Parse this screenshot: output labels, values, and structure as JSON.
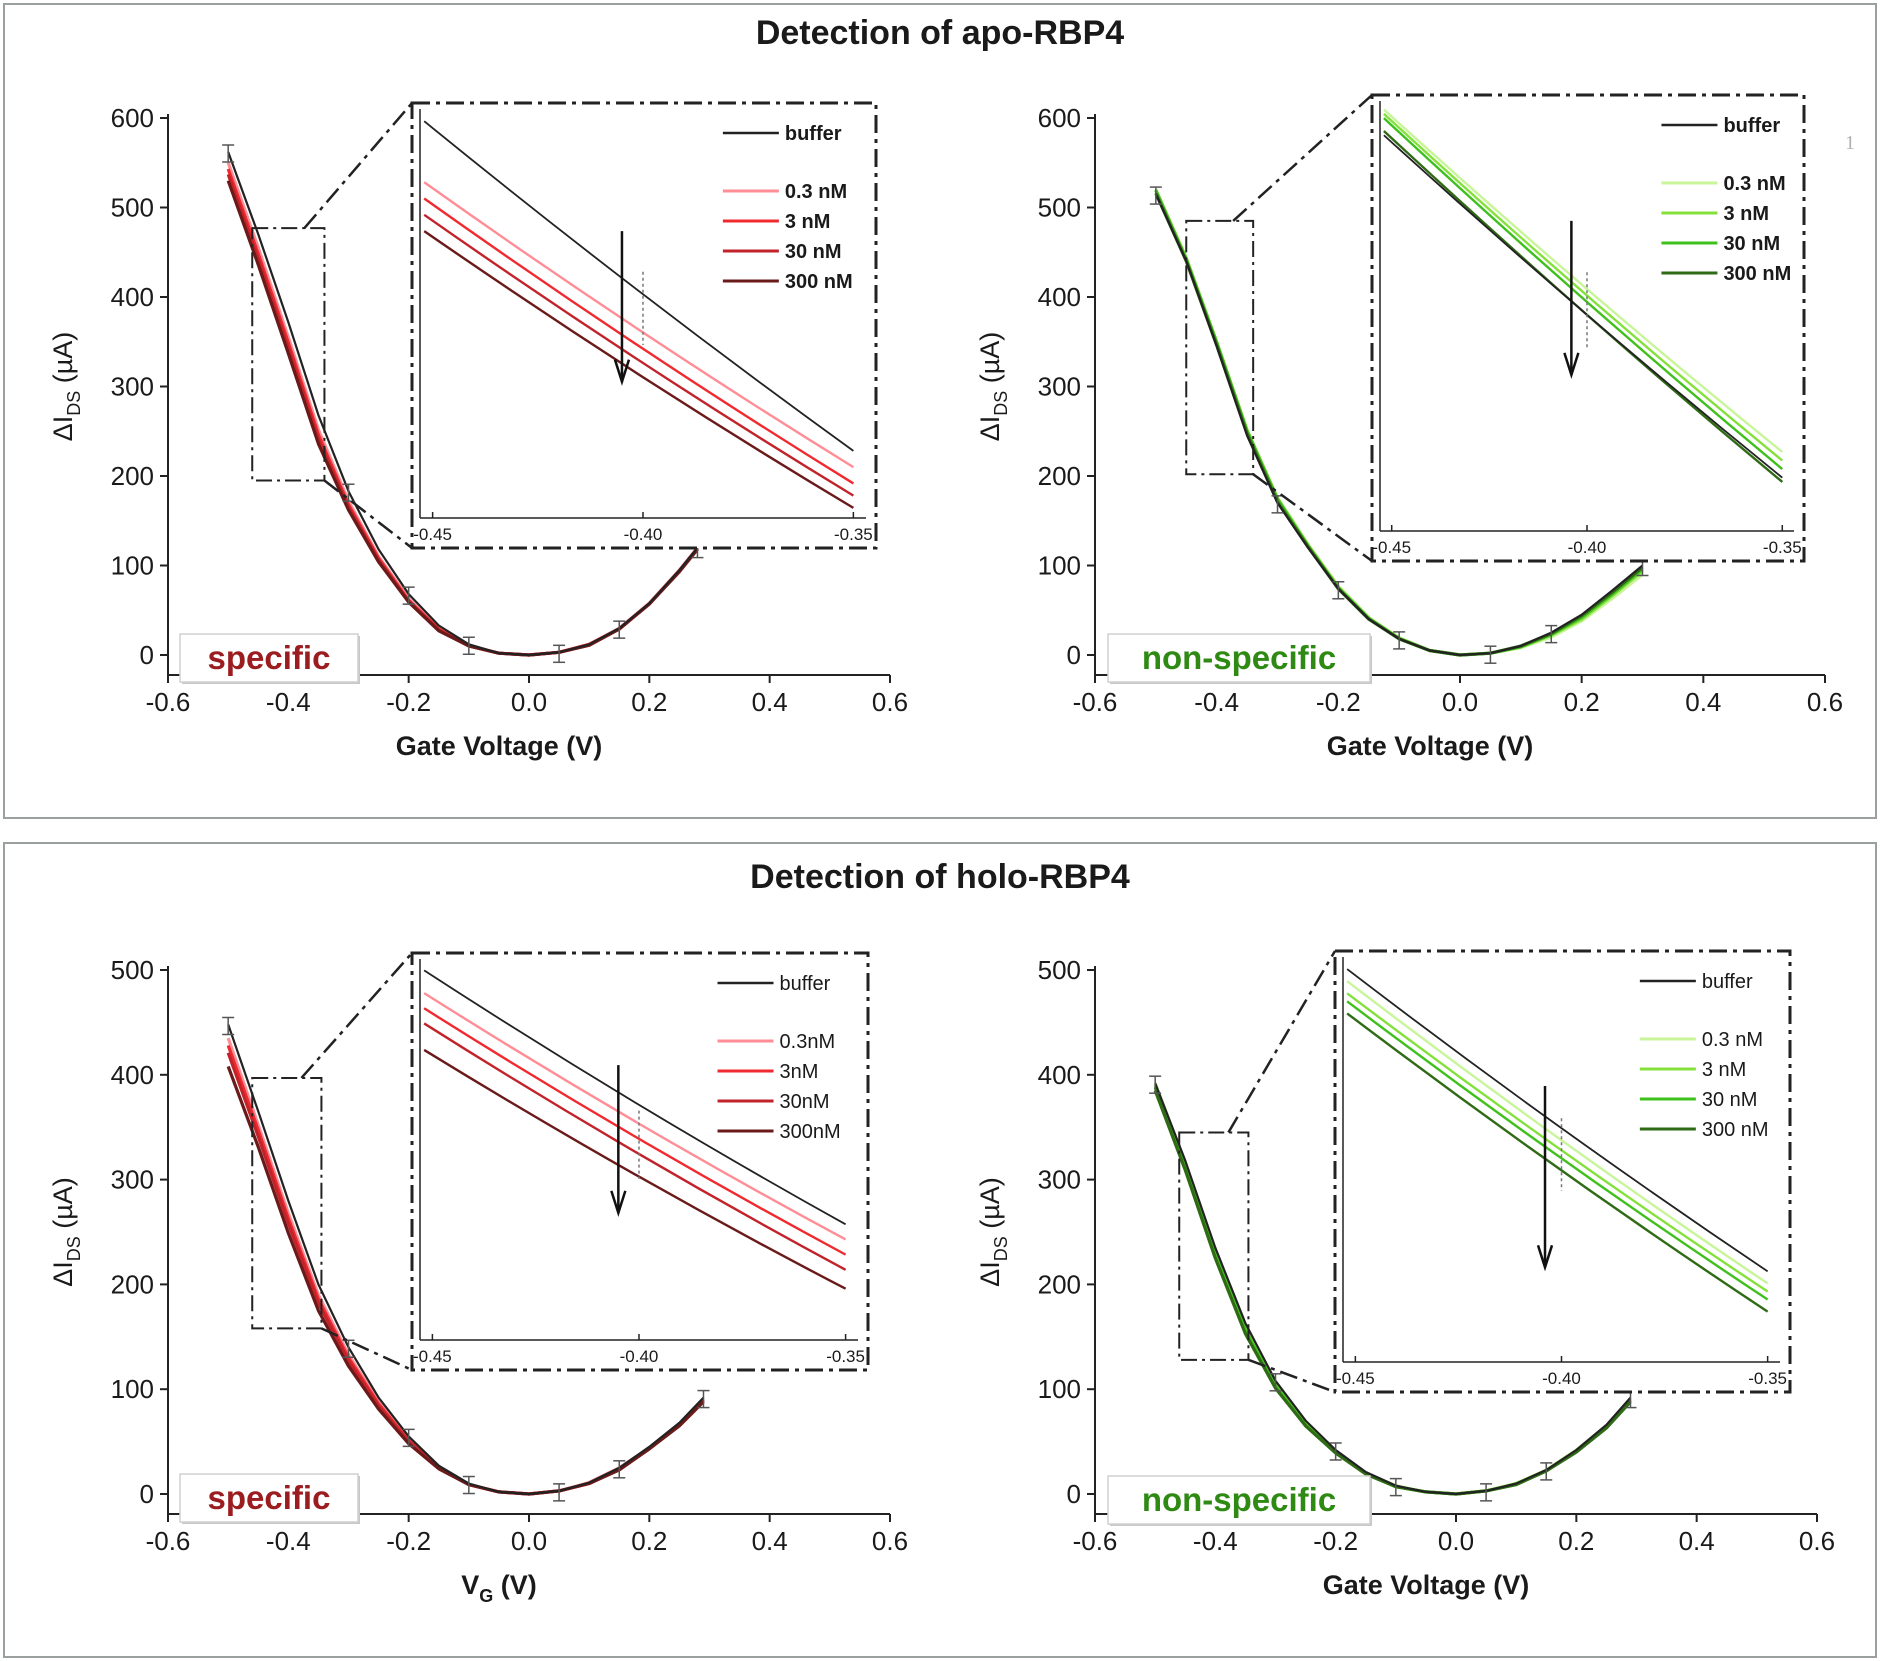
{
  "panels": {
    "top_title": "Detection of apo-RBP4",
    "bottom_title": "Detection of holo-RBP4",
    "stray_mark": "1"
  },
  "colors": {
    "buffer": "#222222",
    "specific": [
      "#ff8d96",
      "#f02a2f",
      "#c2232b",
      "#6b1a1a"
    ],
    "nonspecific": [
      "#c9f59a",
      "#84e13c",
      "#3fc01c",
      "#2f6b15"
    ],
    "specific_label": "#9b1d20",
    "nonspecific_label": "#2f8a14"
  },
  "chart_data": [
    {
      "id": "apo-specific",
      "type": "line",
      "badge": "specific",
      "badge_kind": "specific",
      "xlabel": "Gate Voltage (V)",
      "ylabel_main": "ΔI",
      "ylabel_sub": "DS",
      "ylabel_unit": " (µA)",
      "xlim": [
        -0.6,
        0.6
      ],
      "ylim": [
        0,
        600
      ],
      "xticks": [
        "-0.6",
        "-0.4",
        "-0.2",
        "0.0",
        "0.2",
        "0.4",
        "0.6"
      ],
      "yticks": [
        "0",
        "100",
        "200",
        "300",
        "400",
        "500",
        "600"
      ],
      "x": [
        -0.5,
        -0.45,
        -0.4,
        -0.35,
        -0.3,
        -0.25,
        -0.2,
        -0.15,
        -0.1,
        -0.05,
        0.0,
        0.05,
        0.1,
        0.15,
        0.2,
        0.25,
        0.28
      ],
      "series": [
        {
          "name": "buffer",
          "values": [
            562,
            470,
            372,
            268,
            183,
            118,
            68,
            33,
            12,
            2,
            0,
            3,
            12,
            30,
            58,
            95,
            120
          ]
        },
        {
          "name": "0.3 nM",
          "values": [
            550,
            455,
            355,
            252,
            172,
            110,
            63,
            30,
            11,
            2,
            0,
            3,
            12,
            30,
            58,
            95,
            120
          ]
        },
        {
          "name": "3 nM",
          "values": [
            543,
            448,
            349,
            246,
            168,
            108,
            61,
            29,
            10,
            2,
            0,
            3,
            12,
            29,
            57,
            94,
            119
          ]
        },
        {
          "name": "30 nM",
          "values": [
            537,
            442,
            343,
            241,
            165,
            106,
            60,
            28,
            10,
            2,
            0,
            3,
            11,
            29,
            57,
            94,
            119
          ]
        },
        {
          "name": "300 nM",
          "values": [
            530,
            436,
            337,
            236,
            162,
            104,
            59,
            27,
            10,
            2,
            0,
            3,
            11,
            29,
            57,
            93,
            118
          ]
        }
      ],
      "zoom_box": {
        "x": [
          -0.46,
          -0.34
        ],
        "y": [
          195,
          477
        ]
      },
      "inset": {
        "xlim": [
          -0.453,
          -0.347
        ],
        "xticks": [
          "-0.45",
          "-0.40",
          "-0.35"
        ],
        "xtick_values": [
          -0.45,
          -0.4,
          -0.35
        ],
        "legend": [
          "buffer",
          "0.3 nM",
          "3 nM",
          "30 nM",
          "300 nM"
        ],
        "x": [
          -0.452,
          -0.35
        ],
        "series": [
          [
            0.97,
            0.16
          ],
          [
            0.82,
            0.12
          ],
          [
            0.78,
            0.08
          ],
          [
            0.74,
            0.05
          ],
          [
            0.7,
            0.02
          ]
        ],
        "arrow": {
          "x": -0.405,
          "y0": 0.7,
          "y1": 0.33
        }
      }
    },
    {
      "id": "apo-nonspecific",
      "type": "line",
      "badge": "non-specific",
      "badge_kind": "nonspecific",
      "xlabel": "Gate Voltage (V)",
      "ylabel_main": "ΔI",
      "ylabel_sub": "DS",
      "ylabel_unit": " (µA)",
      "xlim": [
        -0.6,
        0.6
      ],
      "ylim": [
        0,
        600
      ],
      "xticks": [
        "-0.6",
        "-0.4",
        "-0.2",
        "0.0",
        "0.2",
        "0.4",
        "0.6"
      ],
      "yticks": [
        "0",
        "100",
        "200",
        "300",
        "400",
        "500",
        "600"
      ],
      "x": [
        -0.5,
        -0.45,
        -0.4,
        -0.35,
        -0.3,
        -0.25,
        -0.2,
        -0.15,
        -0.1,
        -0.05,
        0.0,
        0.05,
        0.1,
        0.15,
        0.2,
        0.25,
        0.3
      ],
      "series": [
        {
          "name": "buffer",
          "values": [
            515,
            440,
            345,
            245,
            170,
            120,
            74,
            40,
            18,
            5,
            0,
            2,
            10,
            25,
            45,
            72,
            100
          ]
        },
        {
          "name": "0.3 nM",
          "values": [
            520,
            444,
            350,
            252,
            176,
            124,
            77,
            42,
            19,
            5,
            0,
            2,
            8,
            20,
            38,
            63,
            90
          ]
        },
        {
          "name": "3 nM",
          "values": [
            520,
            443,
            350,
            251,
            175,
            123,
            76,
            41,
            19,
            5,
            0,
            2,
            9,
            22,
            40,
            66,
            94
          ]
        },
        {
          "name": "30 nM",
          "values": [
            519,
            442,
            349,
            250,
            174,
            122,
            75,
            41,
            18,
            5,
            0,
            2,
            9,
            23,
            42,
            68,
            96
          ]
        },
        {
          "name": "300 nM",
          "values": [
            516,
            440,
            346,
            247,
            171,
            121,
            74,
            40,
            18,
            5,
            0,
            2,
            10,
            24,
            44,
            70,
            98
          ]
        }
      ],
      "zoom_box": {
        "x": [
          -0.45,
          -0.34
        ],
        "y": [
          202,
          485
        ]
      },
      "inset": {
        "xlim": [
          -0.453,
          -0.347
        ],
        "xticks": [
          "-0.45",
          "-0.40",
          "-0.35"
        ],
        "xtick_values": [
          -0.45,
          -0.4,
          -0.35
        ],
        "legend": [
          "buffer",
          "0.3 nM",
          "3 nM",
          "30 nM",
          "300 nM"
        ],
        "x": [
          -0.452,
          -0.35
        ],
        "series": [
          [
            0.92,
            0.12
          ],
          [
            0.98,
            0.18
          ],
          [
            0.97,
            0.16
          ],
          [
            0.96,
            0.14
          ],
          [
            0.93,
            0.11
          ]
        ],
        "arrow": {
          "x": -0.404,
          "y0": 0.72,
          "y1": 0.36
        }
      }
    },
    {
      "id": "holo-specific",
      "type": "line",
      "badge": "specific",
      "badge_kind": "specific",
      "xlabel_main": "V",
      "xlabel_sub": "G",
      "xlabel_unit": " (V)",
      "ylabel_main": "ΔI",
      "ylabel_sub": "DS",
      "ylabel_unit": " (µA)",
      "xlim": [
        -0.6,
        0.6
      ],
      "ylim": [
        0,
        500
      ],
      "xticks": [
        "-0.6",
        "-0.4",
        "-0.2",
        "0.0",
        "0.2",
        "0.4",
        "0.6"
      ],
      "yticks": [
        "0",
        "100",
        "200",
        "300",
        "400",
        "500"
      ],
      "x": [
        -0.5,
        -0.45,
        -0.4,
        -0.35,
        -0.3,
        -0.25,
        -0.2,
        -0.15,
        -0.1,
        -0.05,
        0.0,
        0.05,
        0.1,
        0.15,
        0.2,
        0.25,
        0.29
      ],
      "series": [
        {
          "name": "buffer",
          "values": [
            448,
            365,
            280,
            200,
            140,
            92,
            55,
            27,
            10,
            2,
            0,
            3,
            11,
            25,
            45,
            68,
            92
          ]
        },
        {
          "name": "0.3nM",
          "values": [
            435,
            352,
            268,
            190,
            133,
            88,
            52,
            26,
            9,
            2,
            0,
            3,
            11,
            25,
            44,
            67,
            91
          ]
        },
        {
          "name": "3nM",
          "values": [
            428,
            347,
            263,
            186,
            130,
            86,
            51,
            25,
            9,
            2,
            0,
            3,
            10,
            24,
            44,
            67,
            90
          ]
        },
        {
          "name": "30nM",
          "values": [
            421,
            341,
            258,
            182,
            127,
            84,
            50,
            25,
            9,
            2,
            0,
            3,
            10,
            24,
            43,
            66,
            89
          ]
        },
        {
          "name": "300nM",
          "values": [
            408,
            331,
            249,
            175,
            122,
            81,
            48,
            24,
            9,
            2,
            0,
            3,
            10,
            23,
            43,
            65,
            88
          ]
        }
      ],
      "zoom_box": {
        "x": [
          -0.46,
          -0.345
        ],
        "y": [
          158,
          397
        ]
      },
      "inset": {
        "xlim": [
          -0.453,
          -0.347
        ],
        "xticks": [
          "-0.45",
          "-0.40",
          "-0.35"
        ],
        "xtick_values": [
          -0.45,
          -0.4,
          -0.35
        ],
        "legend": [
          "buffer",
          "0.3nM",
          "3nM",
          "30nM",
          "300nM"
        ],
        "x": [
          -0.452,
          -0.35
        ],
        "series": [
          [
            0.97,
            0.3
          ],
          [
            0.91,
            0.26
          ],
          [
            0.87,
            0.22
          ],
          [
            0.83,
            0.18
          ],
          [
            0.76,
            0.13
          ]
        ],
        "arrow": {
          "x": -0.405,
          "y0": 0.72,
          "y1": 0.33
        }
      }
    },
    {
      "id": "holo-nonspecific",
      "type": "line",
      "badge": "non-specific",
      "badge_kind": "nonspecific",
      "xlabel": "Gate Voltage (V)",
      "ylabel_main": "ΔI",
      "ylabel_sub": "DS",
      "ylabel_unit": " (µA)",
      "xlim": [
        -0.6,
        0.6
      ],
      "ylim": [
        0,
        500
      ],
      "xticks": [
        "-0.6",
        "-0.4",
        "-0.2",
        "0.0",
        "0.2",
        "0.4",
        "0.6"
      ],
      "yticks": [
        "0",
        "100",
        "200",
        "300",
        "400",
        "500"
      ],
      "x": [
        -0.5,
        -0.45,
        -0.4,
        -0.35,
        -0.3,
        -0.25,
        -0.2,
        -0.15,
        -0.1,
        -0.05,
        0.0,
        0.05,
        0.1,
        0.15,
        0.2,
        0.25,
        0.29
      ],
      "series": [
        {
          "name": "buffer",
          "values": [
            392,
            318,
            235,
            163,
            108,
            70,
            42,
            21,
            8,
            2,
            0,
            3,
            10,
            23,
            42,
            66,
            92
          ]
        },
        {
          "name": "0.3 nM",
          "values": [
            392,
            316,
            232,
            160,
            106,
            68,
            41,
            20,
            8,
            2,
            0,
            3,
            10,
            23,
            42,
            65,
            91
          ]
        },
        {
          "name": "3 nM",
          "values": [
            390,
            314,
            230,
            158,
            104,
            67,
            40,
            20,
            7,
            2,
            0,
            3,
            10,
            22,
            41,
            64,
            90
          ]
        },
        {
          "name": "30 nM",
          "values": [
            388,
            312,
            228,
            156,
            103,
            66,
            40,
            20,
            7,
            2,
            0,
            3,
            9,
            22,
            41,
            64,
            89
          ]
        },
        {
          "name": "300 nM",
          "values": [
            385,
            309,
            225,
            153,
            101,
            65,
            39,
            19,
            7,
            2,
            0,
            3,
            9,
            22,
            40,
            63,
            88
          ]
        }
      ],
      "zoom_box": {
        "x": [
          -0.46,
          -0.345
        ],
        "y": [
          128,
          345
        ]
      },
      "inset": {
        "xlim": [
          -0.453,
          -0.347
        ],
        "xticks": [
          "-0.45",
          "-0.40",
          "-0.35"
        ],
        "xtick_values": [
          -0.45,
          -0.4,
          -0.35
        ],
        "legend": [
          "buffer",
          "0.3 nM",
          "3 nM",
          "30 nM",
          "300 nM"
        ],
        "x": [
          -0.452,
          -0.35
        ],
        "series": [
          [
            0.97,
            0.22
          ],
          [
            0.94,
            0.19
          ],
          [
            0.91,
            0.17
          ],
          [
            0.89,
            0.15
          ],
          [
            0.86,
            0.12
          ]
        ],
        "arrow": {
          "x": -0.404,
          "y0": 0.68,
          "y1": 0.23
        }
      }
    }
  ]
}
